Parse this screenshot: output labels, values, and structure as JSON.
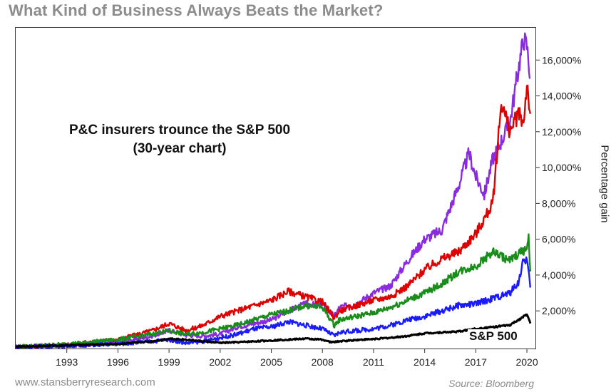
{
  "chart_data": {
    "type": "line",
    "title": "What Kind of Business Always Beats the Market?",
    "annotation_line1": "P&C insurers trounce the S&P 500",
    "annotation_line2": "(30-year chart)",
    "ylabel": "Percentage gain",
    "xlabel": "",
    "source": "Source: Bloomberg",
    "website": "www.stansberryresearch.com",
    "x_tick_labels": [
      "1993",
      "1996",
      "1999",
      "2002",
      "2005",
      "2008",
      "2011",
      "2014",
      "2017",
      "2020"
    ],
    "y_tick_labels": [
      "2,000%",
      "4,000%",
      "6,000%",
      "8,000%",
      "10,000%",
      "12,000%",
      "14,000%",
      "16,000%"
    ],
    "xlim": [
      1990,
      2020.5
    ],
    "ylim": [
      -100,
      17800
    ],
    "y_ticks": [
      2000,
      4000,
      6000,
      8000,
      10000,
      12000,
      14000,
      16000
    ],
    "x_ticks": [
      1993,
      1996,
      1999,
      2002,
      2005,
      2008,
      2011,
      2014,
      2017,
      2020
    ],
    "grid": false,
    "series": [
      {
        "color": "#8a2be2",
        "x": [
          1990,
          1993,
          1996,
          1998,
          1999,
          2000,
          2001,
          2002,
          2003,
          2005,
          2006,
          2007,
          2008,
          2008.7,
          2009,
          2010,
          2011,
          2012,
          2013,
          2014,
          2015,
          2016,
          2016.6,
          2017,
          2017.5,
          2018,
          2019,
          2019.5,
          2019.8,
          2020,
          2020.2
        ],
        "y": [
          0,
          50,
          200,
          600,
          900,
          650,
          600,
          700,
          1100,
          1500,
          2000,
          2400,
          2300,
          1700,
          2200,
          2400,
          3000,
          3400,
          4800,
          6000,
          6500,
          9000,
          10800,
          9500,
          8500,
          10500,
          12500,
          15500,
          17200,
          16800,
          15000
        ]
      },
      {
        "color": "#e00000",
        "x": [
          1990,
          1993,
          1996,
          1998,
          1999,
          2000,
          2001,
          2002,
          2003,
          2004,
          2005,
          2006,
          2007,
          2008,
          2008.7,
          2009,
          2010,
          2011,
          2012,
          2013,
          2014,
          2015,
          2016,
          2017,
          2018,
          2018.5,
          2019,
          2019.5,
          2019.8,
          2020,
          2020.2
        ],
        "y": [
          0,
          100,
          400,
          900,
          1300,
          900,
          1200,
          1700,
          2000,
          2300,
          2600,
          3100,
          2800,
          2500,
          1600,
          2000,
          2300,
          2600,
          2800,
          3400,
          4300,
          4900,
          5300,
          6300,
          8000,
          13700,
          12000,
          13000,
          12500,
          14700,
          13000
        ]
      },
      {
        "color": "#1a8c1a",
        "x": [
          1990,
          1993,
          1996,
          1998,
          1999,
          2000,
          2001,
          2002,
          2003,
          2004,
          2005,
          2006,
          2007,
          2008,
          2008.7,
          2009,
          2010,
          2011,
          2012,
          2013,
          2014,
          2015,
          2016,
          2017,
          2018,
          2019,
          2019.5,
          2020,
          2020.1,
          2020.2
        ],
        "y": [
          0,
          150,
          400,
          700,
          900,
          700,
          800,
          1000,
          1200,
          1500,
          1800,
          2000,
          2300,
          2200,
          1200,
          1500,
          1700,
          1900,
          2200,
          2600,
          3000,
          3500,
          4200,
          4500,
          5300,
          4800,
          5200,
          5500,
          6000,
          4200
        ]
      },
      {
        "color": "#1a1aff",
        "x": [
          1990,
          1993,
          1996,
          1998,
          1999,
          2000,
          2001,
          2002,
          2003,
          2004,
          2005,
          2006,
          2007,
          2008,
          2008.7,
          2009,
          2010,
          2011,
          2012,
          2013,
          2014,
          2015,
          2016,
          2017,
          2018,
          2019,
          2019.5,
          2019.8,
          2020,
          2020.2
        ],
        "y": [
          0,
          50,
          150,
          300,
          400,
          200,
          300,
          500,
          700,
          1000,
          1100,
          1400,
          1200,
          1000,
          600,
          800,
          900,
          1000,
          1200,
          1500,
          1700,
          2000,
          2300,
          2400,
          2700,
          3000,
          3600,
          4800,
          4900,
          3300
        ]
      },
      {
        "color": "#000000",
        "x": [
          1990,
          1993,
          1996,
          1998,
          1999,
          2000,
          2001,
          2002,
          2003,
          2004,
          2005,
          2006,
          2007,
          2008,
          2008.5,
          2009,
          2010,
          2011,
          2012,
          2013,
          2014,
          2015,
          2016,
          2017,
          2018,
          2019,
          2019.5,
          2020,
          2020.2
        ],
        "y": [
          0,
          80,
          150,
          300,
          450,
          400,
          300,
          220,
          250,
          300,
          350,
          400,
          450,
          400,
          250,
          300,
          380,
          430,
          500,
          600,
          750,
          800,
          850,
          1000,
          1100,
          1200,
          1500,
          1800,
          1300
        ]
      }
    ],
    "series_label": "S&P 500"
  }
}
